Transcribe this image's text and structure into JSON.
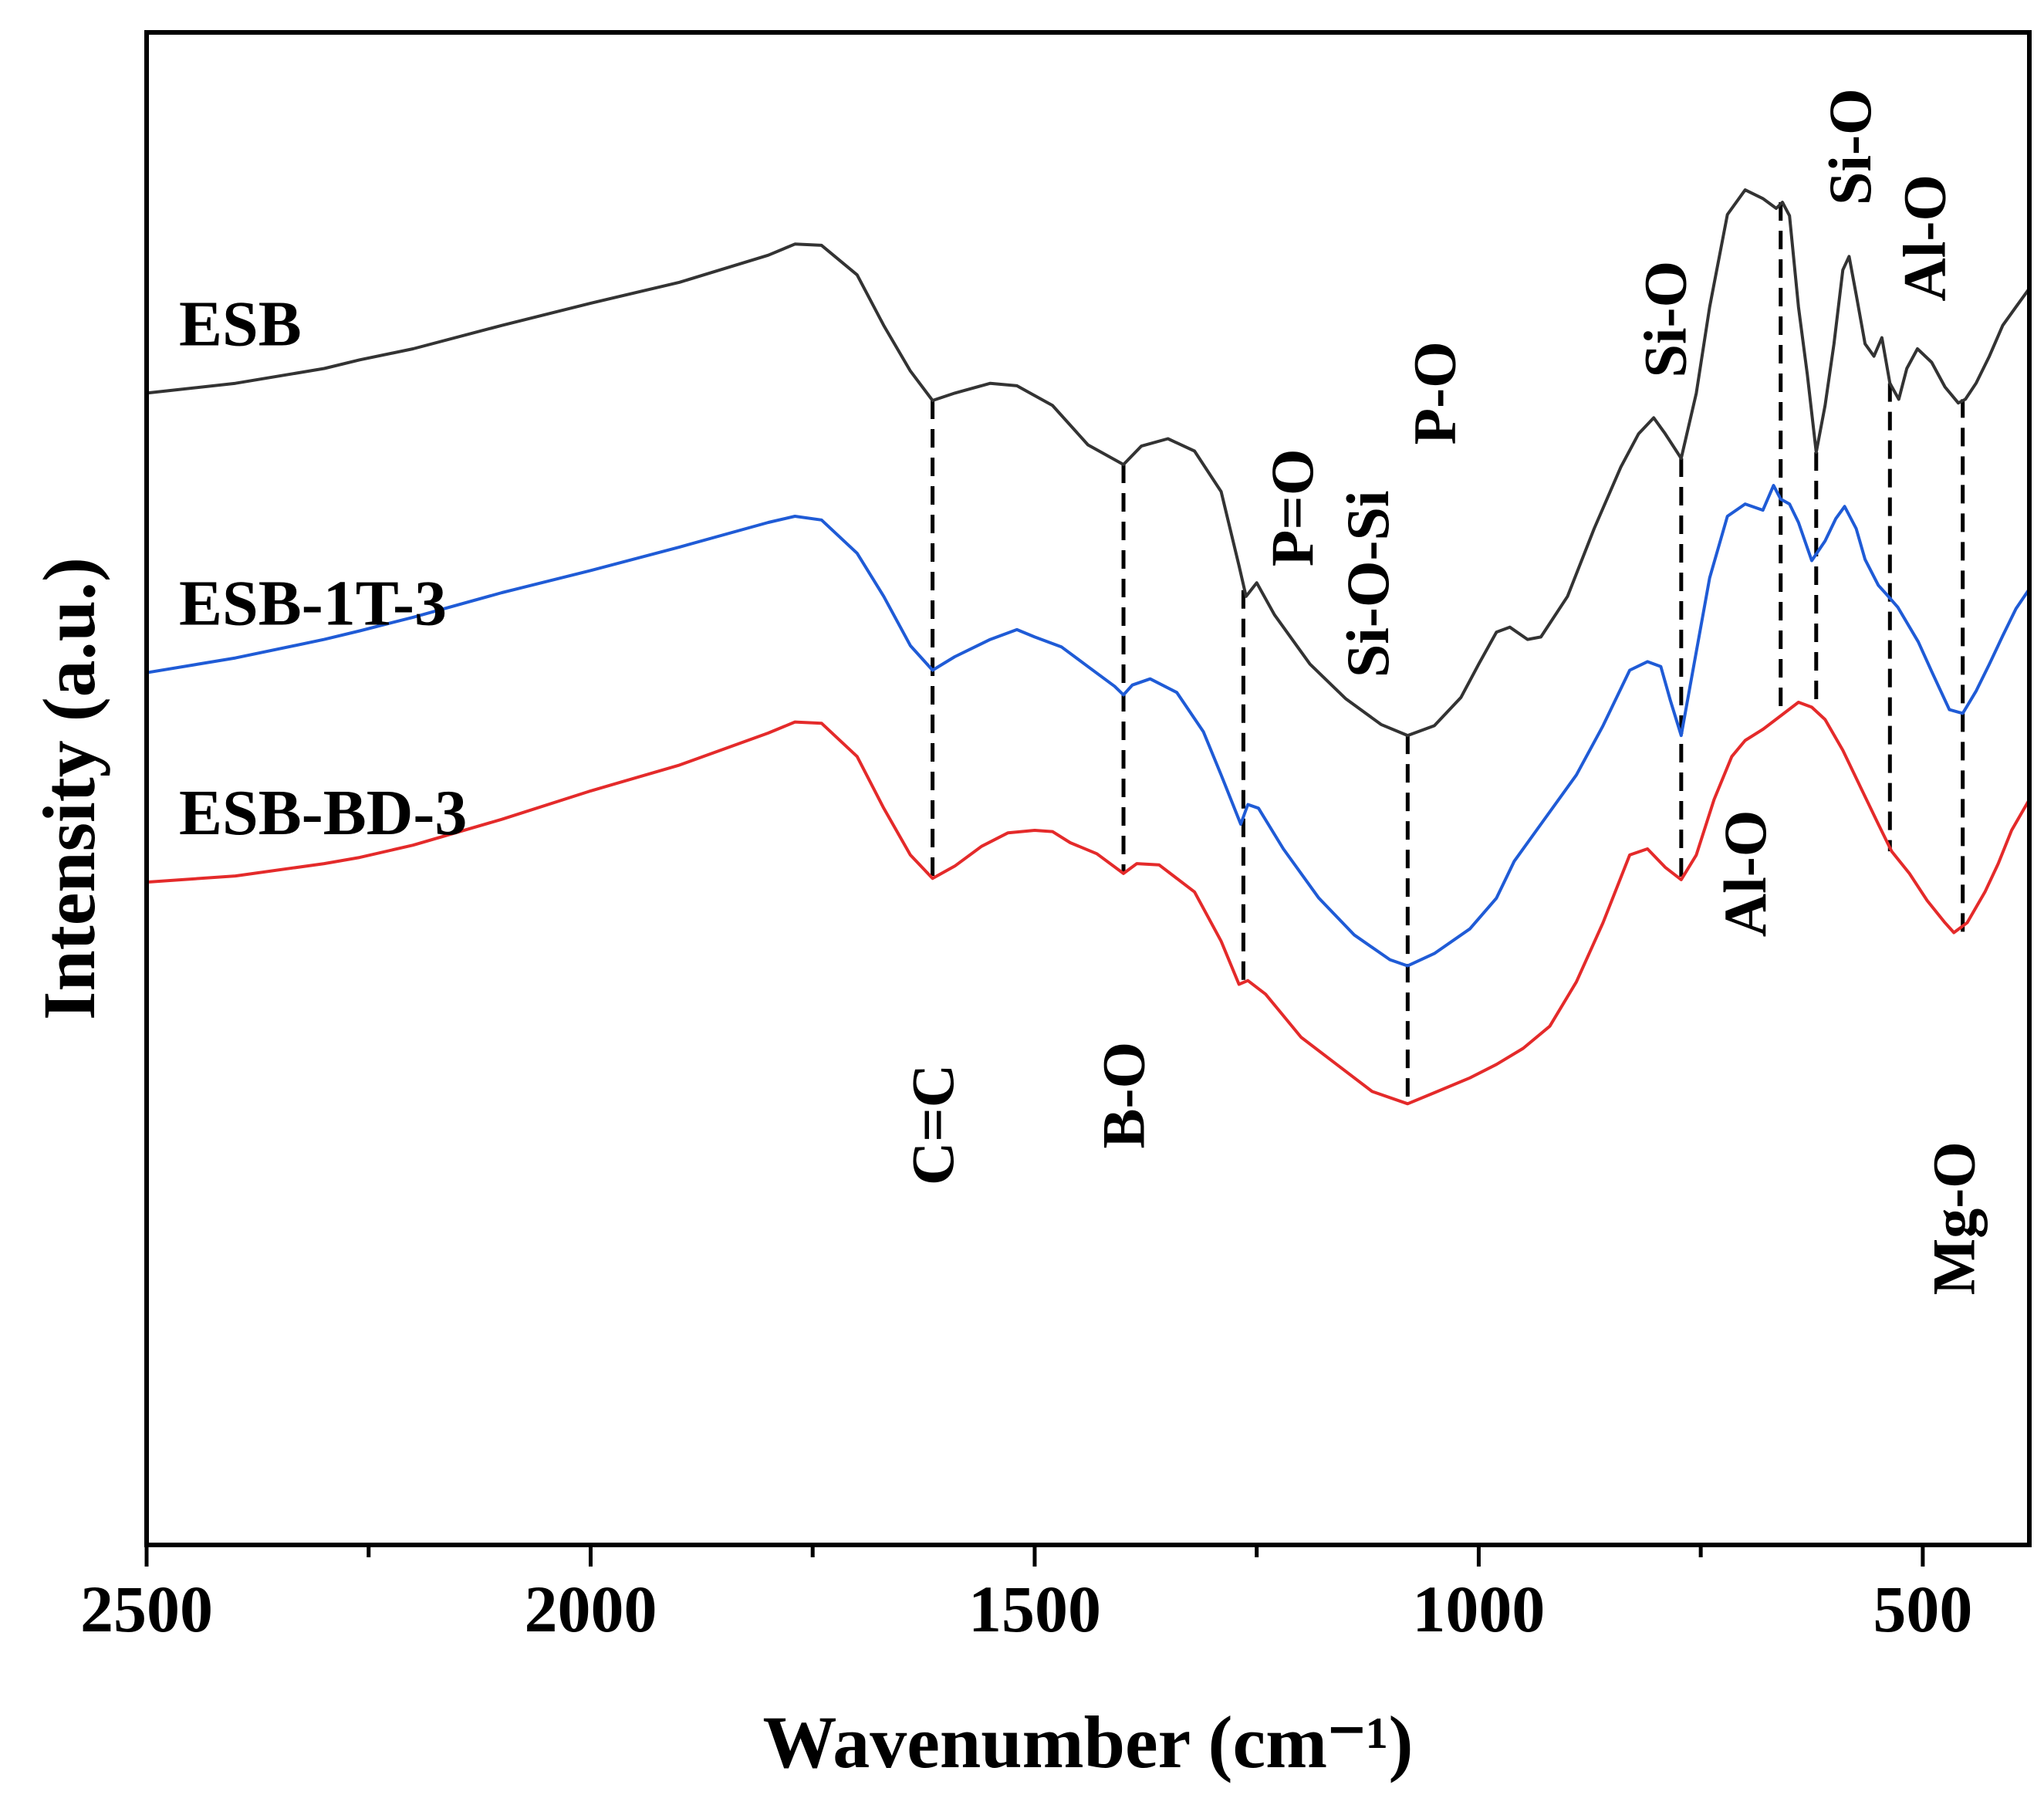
{
  "chart_data": {
    "type": "line",
    "title": "",
    "xlabel": "Wavenumber (cm⁻¹)",
    "ylabel": "Intensity (a.u.)",
    "xlim": [
      2500,
      380
    ],
    "x_reversed": true,
    "ylim": [
      0,
      100
    ],
    "y_ticks_labeled": false,
    "grid": false,
    "legend": "inline labels at left",
    "x_ticks": [
      {
        "value": 2500,
        "label": "2500"
      },
      {
        "value": 2000,
        "label": "2000"
      },
      {
        "value": 1500,
        "label": "1500"
      },
      {
        "value": 1000,
        "label": "1000"
      },
      {
        "value": 500,
        "label": "500"
      }
    ],
    "x_minor_ticks": [
      2250,
      1750,
      1250,
      750
    ],
    "series": [
      {
        "name": "ESB",
        "color": "#333333",
        "points": [
          [
            2500,
            86
          ],
          [
            2400,
            86.8
          ],
          [
            2300,
            88
          ],
          [
            2260,
            88.7
          ],
          [
            2200,
            89.6
          ],
          [
            2100,
            91.5
          ],
          [
            2000,
            93.3
          ],
          [
            1900,
            95
          ],
          [
            1800,
            97.2
          ],
          [
            1770,
            98.1
          ],
          [
            1740,
            98
          ],
          [
            1700,
            95.6
          ],
          [
            1670,
            91.5
          ],
          [
            1640,
            87.8
          ],
          [
            1615,
            85.4
          ],
          [
            1590,
            86
          ],
          [
            1550,
            86.8
          ],
          [
            1520,
            86.6
          ],
          [
            1480,
            85
          ],
          [
            1440,
            81.8
          ],
          [
            1400,
            80.2
          ],
          [
            1380,
            81.7
          ],
          [
            1350,
            82.3
          ],
          [
            1320,
            81.3
          ],
          [
            1290,
            78
          ],
          [
            1270,
            72
          ],
          [
            1262,
            69.5
          ],
          [
            1250,
            70.6
          ],
          [
            1230,
            68
          ],
          [
            1190,
            64
          ],
          [
            1150,
            61.2
          ],
          [
            1110,
            59.1
          ],
          [
            1080,
            58.2
          ],
          [
            1050,
            59
          ],
          [
            1020,
            61.3
          ],
          [
            1000,
            64
          ],
          [
            980,
            66.6
          ],
          [
            965,
            67
          ],
          [
            945,
            66
          ],
          [
            930,
            66.2
          ],
          [
            900,
            69.5
          ],
          [
            870,
            75
          ],
          [
            840,
            80
          ],
          [
            820,
            82.7
          ],
          [
            803,
            84
          ],
          [
            790,
            82.7
          ],
          [
            772,
            80.7
          ],
          [
            755,
            86
          ],
          [
            740,
            93
          ],
          [
            720,
            100.5
          ],
          [
            700,
            102.5
          ],
          [
            680,
            101.8
          ],
          [
            665,
            101
          ],
          [
            658,
            101.5
          ],
          [
            650,
            100.4
          ],
          [
            640,
            93
          ],
          [
            630,
            87.5
          ],
          [
            620,
            81.2
          ],
          [
            610,
            85
          ],
          [
            600,
            90
          ],
          [
            590,
            96
          ],
          [
            583,
            97.1
          ],
          [
            575,
            94
          ],
          [
            565,
            90
          ],
          [
            555,
            89
          ],
          [
            546,
            90.5
          ],
          [
            537,
            86.8
          ],
          [
            527,
            85.5
          ],
          [
            518,
            88
          ],
          [
            506,
            89.6
          ],
          [
            490,
            88.5
          ],
          [
            475,
            86.5
          ],
          [
            460,
            85.2
          ],
          [
            452,
            85.5
          ],
          [
            440,
            86.8
          ],
          [
            425,
            89
          ],
          [
            410,
            91.5
          ],
          [
            395,
            93
          ],
          [
            380,
            94.5
          ]
        ]
      },
      {
        "name": "ESB-1T-3",
        "color": "#1f5bd6",
        "points": [
          [
            2500,
            63.3
          ],
          [
            2400,
            64.5
          ],
          [
            2300,
            66
          ],
          [
            2260,
            66.7
          ],
          [
            2200,
            67.8
          ],
          [
            2100,
            69.8
          ],
          [
            2000,
            71.6
          ],
          [
            1900,
            73.5
          ],
          [
            1800,
            75.5
          ],
          [
            1770,
            76
          ],
          [
            1740,
            75.7
          ],
          [
            1700,
            73
          ],
          [
            1670,
            69.5
          ],
          [
            1640,
            65.5
          ],
          [
            1615,
            63.5
          ],
          [
            1590,
            64.6
          ],
          [
            1550,
            66
          ],
          [
            1520,
            66.8
          ],
          [
            1500,
            66.2
          ],
          [
            1470,
            65.4
          ],
          [
            1440,
            63.8
          ],
          [
            1410,
            62.2
          ],
          [
            1400,
            61.5
          ],
          [
            1390,
            62.3
          ],
          [
            1370,
            62.8
          ],
          [
            1340,
            61.7
          ],
          [
            1310,
            58.5
          ],
          [
            1290,
            55
          ],
          [
            1268,
            51
          ],
          [
            1260,
            52.6
          ],
          [
            1248,
            52.3
          ],
          [
            1220,
            49
          ],
          [
            1180,
            45
          ],
          [
            1140,
            42
          ],
          [
            1100,
            40
          ],
          [
            1080,
            39.5
          ],
          [
            1050,
            40.5
          ],
          [
            1010,
            42.5
          ],
          [
            980,
            45
          ],
          [
            960,
            48
          ],
          [
            930,
            51
          ],
          [
            890,
            55
          ],
          [
            860,
            59
          ],
          [
            830,
            63.5
          ],
          [
            810,
            64.2
          ],
          [
            795,
            63.8
          ],
          [
            784,
            61
          ],
          [
            772,
            58.2
          ],
          [
            760,
            63
          ],
          [
            740,
            71
          ],
          [
            720,
            76
          ],
          [
            700,
            77
          ],
          [
            680,
            76.5
          ],
          [
            668,
            78.5
          ],
          [
            660,
            77.4
          ],
          [
            650,
            77
          ],
          [
            640,
            75.5
          ],
          [
            625,
            72.4
          ],
          [
            610,
            74
          ],
          [
            598,
            75.8
          ],
          [
            588,
            76.8
          ],
          [
            575,
            75
          ],
          [
            565,
            72.5
          ],
          [
            550,
            70.4
          ],
          [
            540,
            69.6
          ],
          [
            528,
            68.6
          ],
          [
            505,
            65.8
          ],
          [
            490,
            63.4
          ],
          [
            470,
            60.3
          ],
          [
            455,
            60
          ],
          [
            440,
            61.8
          ],
          [
            425,
            64
          ],
          [
            410,
            66.3
          ],
          [
            395,
            68.5
          ],
          [
            380,
            70.1
          ]
        ]
      },
      {
        "name": "ESB-BD-3",
        "color": "#e42a2a",
        "points": [
          [
            2500,
            46.3
          ],
          [
            2400,
            46.8
          ],
          [
            2300,
            47.8
          ],
          [
            2260,
            48.3
          ],
          [
            2200,
            49.3
          ],
          [
            2100,
            51.4
          ],
          [
            2000,
            53.7
          ],
          [
            1900,
            55.8
          ],
          [
            1800,
            58.4
          ],
          [
            1770,
            59.3
          ],
          [
            1740,
            59.2
          ],
          [
            1700,
            56.5
          ],
          [
            1670,
            52.3
          ],
          [
            1640,
            48.5
          ],
          [
            1615,
            46.6
          ],
          [
            1590,
            47.6
          ],
          [
            1560,
            49.2
          ],
          [
            1530,
            50.3
          ],
          [
            1500,
            50.5
          ],
          [
            1480,
            50.4
          ],
          [
            1460,
            49.5
          ],
          [
            1430,
            48.6
          ],
          [
            1400,
            47
          ],
          [
            1385,
            47.8
          ],
          [
            1360,
            47.7
          ],
          [
            1320,
            45.5
          ],
          [
            1290,
            41.5
          ],
          [
            1270,
            38
          ],
          [
            1260,
            38.3
          ],
          [
            1240,
            37.2
          ],
          [
            1200,
            33.7
          ],
          [
            1160,
            31.5
          ],
          [
            1120,
            29.3
          ],
          [
            1080,
            28.3
          ],
          [
            1050,
            29.2
          ],
          [
            1010,
            30.4
          ],
          [
            980,
            31.5
          ],
          [
            950,
            32.8
          ],
          [
            920,
            34.6
          ],
          [
            890,
            38.2
          ],
          [
            860,
            43
          ],
          [
            830,
            48.5
          ],
          [
            810,
            49
          ],
          [
            790,
            47.5
          ],
          [
            772,
            46.5
          ],
          [
            755,
            48.5
          ],
          [
            735,
            53
          ],
          [
            715,
            56.5
          ],
          [
            700,
            57.8
          ],
          [
            680,
            58.7
          ],
          [
            660,
            59.8
          ],
          [
            640,
            60.9
          ],
          [
            625,
            60.5
          ],
          [
            610,
            59.5
          ],
          [
            590,
            57
          ],
          [
            570,
            54
          ],
          [
            550,
            51
          ],
          [
            535,
            48.8
          ],
          [
            515,
            47
          ],
          [
            495,
            44.8
          ],
          [
            475,
            43
          ],
          [
            465,
            42.2
          ],
          [
            450,
            43
          ],
          [
            430,
            45.5
          ],
          [
            415,
            47.8
          ],
          [
            400,
            50.5
          ],
          [
            380,
            53
          ]
        ]
      }
    ],
    "series_labels": [
      {
        "text": "ESB",
        "series": 0
      },
      {
        "text": "ESB-1T-3",
        "series": 1
      },
      {
        "text": "ESB-BD-3",
        "series": 2
      }
    ],
    "guides": [
      {
        "x": 1615,
        "y_top": 85.4,
        "y_bottom": 46.6
      },
      {
        "x": 1400,
        "y_top": 80.2,
        "y_bottom": 47
      },
      {
        "x": 1265,
        "y_top": 70,
        "y_bottom": 38
      },
      {
        "x": 1080,
        "y_top": 58.2,
        "y_bottom": 28.3
      },
      {
        "x": 772,
        "y_top": 80.7,
        "y_bottom": 46.5
      },
      {
        "x": 660,
        "y_top": 101.5,
        "y_bottom": 59.8
      },
      {
        "x": 620,
        "y_top": 81.2,
        "y_bottom": 60.5
      },
      {
        "x": 537,
        "y_top": 86.8,
        "y_bottom": 48.8
      },
      {
        "x": 455,
        "y_top": 85.5,
        "y_bottom": 42.2
      }
    ],
    "band_labels": [
      {
        "text": "C=C",
        "x": 1615,
        "y": 26.6
      },
      {
        "text": "B-O",
        "x": 1400,
        "y": 29
      },
      {
        "text": "P=O",
        "x": 1210,
        "y": 76.7
      },
      {
        "text": "Si-O-Si",
        "x": 1125,
        "y": 70.5
      },
      {
        "text": "P-O",
        "x": 1050,
        "y": 86
      },
      {
        "text": "Si-O",
        "x": 790,
        "y": 92
      },
      {
        "text": "Al-O",
        "x": 700,
        "y": 47
      },
      {
        "text": "Si-O",
        "x": 582,
        "y": 106
      },
      {
        "text": "Al-O",
        "x": 498,
        "y": 98.6
      },
      {
        "text": "Mg-O",
        "x": 465,
        "y": 19
      }
    ]
  }
}
